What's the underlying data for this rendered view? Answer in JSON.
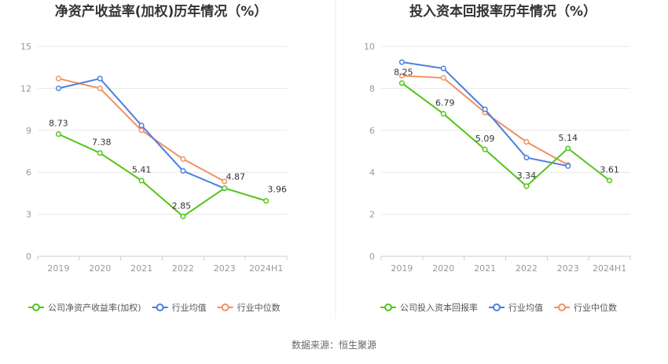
{
  "colors": {
    "company": "#52c41a",
    "industry_avg": "#4a7fe0",
    "industry_median": "#f39063",
    "grid": "#e8e8e8",
    "axis": "#cccccc"
  },
  "footer": {
    "source": "数据来源：恒生聚源"
  },
  "chart_data": [
    {
      "type": "line",
      "title": "净资产收益率(加权)历年情况（%）",
      "categories": [
        "2019",
        "2020",
        "2021",
        "2022",
        "2023",
        "2024H1"
      ],
      "yticks": [
        "0",
        "3",
        "6",
        "9",
        "12",
        "15"
      ],
      "ylim": [
        0,
        15
      ],
      "grid": true,
      "legend_position": "bottom-left",
      "series": [
        {
          "name": "公司净资产收益率(加权)",
          "color_key": "company",
          "values": [
            8.73,
            7.38,
            5.41,
            2.85,
            4.87,
            3.96
          ],
          "data_labels": [
            "8.73",
            "7.38",
            "5.41",
            "2.85",
            "4.87",
            "3.96"
          ]
        },
        {
          "name": "行业均值",
          "color_key": "industry_avg",
          "values": [
            12.0,
            12.7,
            9.35,
            6.1,
            4.85,
            null
          ],
          "data_labels": []
        },
        {
          "name": "行业中位数",
          "color_key": "industry_median",
          "values": [
            12.7,
            12.0,
            9.0,
            6.95,
            5.35,
            null
          ],
          "data_labels": []
        }
      ]
    },
    {
      "type": "line",
      "title": "投入资本回报率历年情况（%）",
      "categories": [
        "2019",
        "2020",
        "2021",
        "2022",
        "2023",
        "2024H1"
      ],
      "yticks": [
        "0",
        "2",
        "4",
        "6",
        "8",
        "10"
      ],
      "ylim": [
        0,
        10
      ],
      "grid": true,
      "legend_position": "bottom-left",
      "series": [
        {
          "name": "公司投入资本回报率",
          "color_key": "company",
          "values": [
            8.25,
            6.79,
            5.09,
            3.34,
            5.14,
            3.61
          ],
          "data_labels": [
            "8.25",
            "6.79",
            "5.09",
            "3.34",
            "5.14",
            "3.61"
          ]
        },
        {
          "name": "行业均值",
          "color_key": "industry_avg",
          "values": [
            9.25,
            8.95,
            7.0,
            4.7,
            4.3,
            null
          ],
          "data_labels": []
        },
        {
          "name": "行业中位数",
          "color_key": "industry_median",
          "values": [
            8.6,
            8.5,
            6.85,
            5.45,
            4.35,
            null
          ],
          "data_labels": []
        }
      ]
    }
  ]
}
